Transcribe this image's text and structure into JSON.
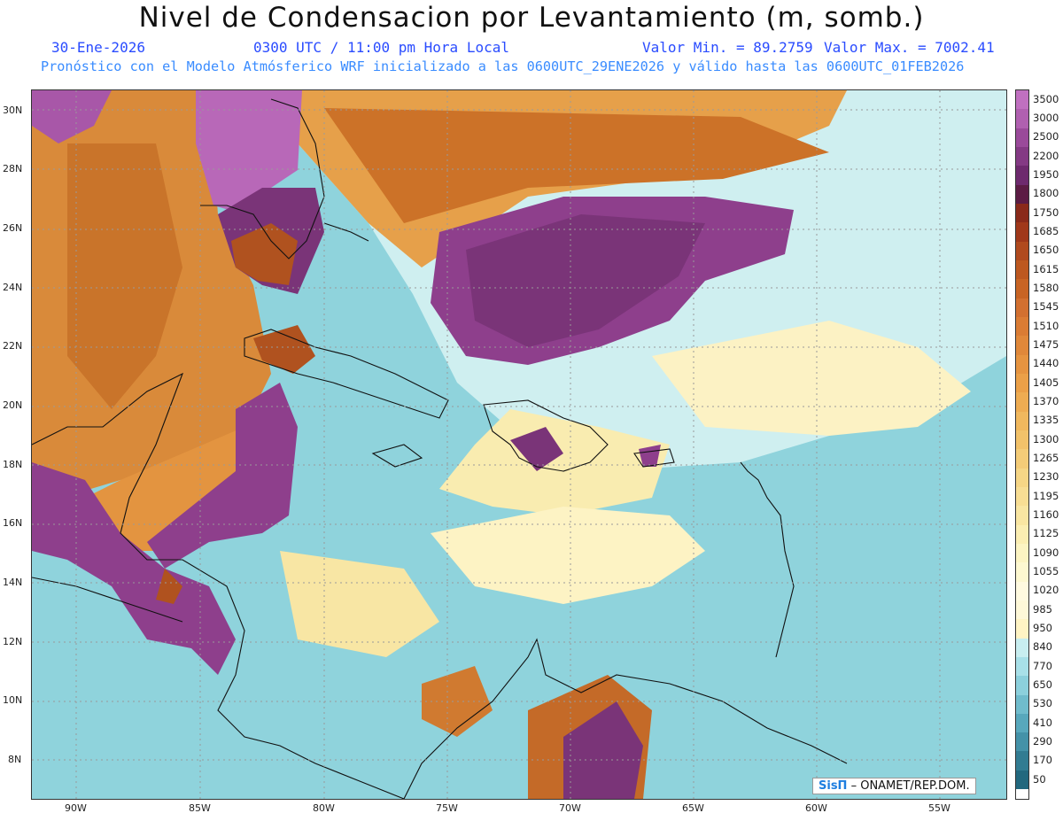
{
  "header": {
    "title": "Nivel de Condensacion por Levantamiento (m, somb.)",
    "date": "30-Ene-2026",
    "time": "0300 UTC / 11:00 pm Hora Local",
    "min": "Valor Min. = 89.2759",
    "max": "Valor Max. = 7002.41",
    "forecast": "Pronóstico con el Modelo Atmósferico WRF inicializado a las 0600UTC_29ENE2026 y válido hasta las  0600UTC_01FEB2026"
  },
  "axes": {
    "lat_labels": [
      "30N",
      "28N",
      "26N",
      "24N",
      "22N",
      "20N",
      "18N",
      "16N",
      "14N",
      "12N",
      "10N",
      "8N"
    ],
    "lon_labels": [
      "90W",
      "85W",
      "80W",
      "75W",
      "70W",
      "65W",
      "60W",
      "55W"
    ]
  },
  "colorbar": {
    "labels": [
      "3500",
      "3000",
      "2500",
      "2200",
      "1950",
      "1800",
      "1750",
      "1685",
      "1650",
      "1615",
      "1580",
      "1545",
      "1510",
      "1475",
      "1440",
      "1405",
      "1370",
      "1335",
      "1300",
      "1265",
      "1230",
      "1195",
      "1160",
      "1125",
      "1090",
      "1055",
      "1020",
      "985",
      "950",
      "840",
      "770",
      "650",
      "530",
      "410",
      "290",
      "170",
      "50"
    ],
    "colors": [
      "#c070c0",
      "#b060b0",
      "#9a4a9a",
      "#843a84",
      "#6e2a6e",
      "#5c1c44",
      "#8a2a1a",
      "#a0381a",
      "#b04a1e",
      "#bd5820",
      "#c86424",
      "#d27030",
      "#da7c34",
      "#e0883a",
      "#e69440",
      "#eba048",
      "#eeac52",
      "#f0b85e",
      "#f2c26a",
      "#f4cc78",
      "#f6d686",
      "#f8de94",
      "#f9e6a2",
      "#fbeeb2",
      "#fcf4c2",
      "#fdf8d0",
      "#fffae0",
      "#fef8d8",
      "#fff4c4",
      "#c8eef0",
      "#a8e0e8",
      "#8cd0dc",
      "#70bccc",
      "#58a8bc",
      "#4492a8",
      "#327c92",
      "#22687e"
    ]
  },
  "credit": {
    "logo": "SisΠ",
    "text": "– ONAMET/REP.DOM."
  }
}
